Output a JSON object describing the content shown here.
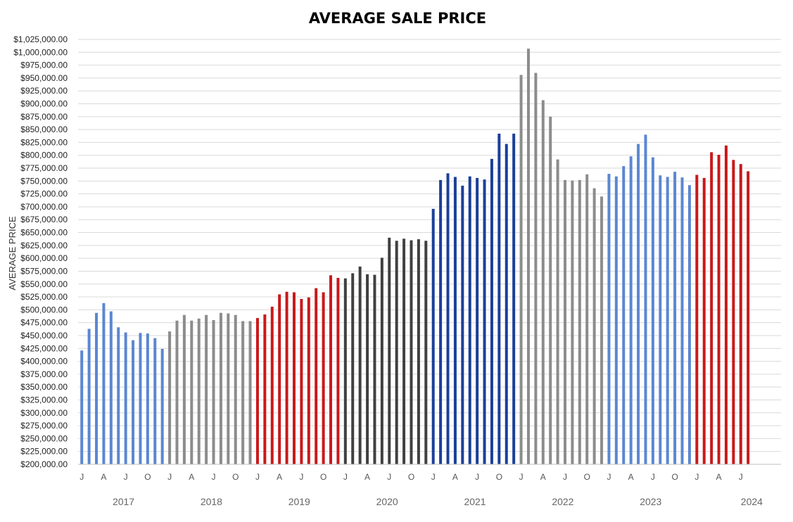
{
  "chart_data": {
    "type": "bar",
    "title": "AVERAGE SALE PRICE",
    "xlabel": "",
    "ylabel": "AVERAGE PRICE",
    "ylim": [
      200000,
      1025000
    ],
    "ytick_step": 25000,
    "ytick_format": "$#,##0.00",
    "grid": true,
    "legend": "none",
    "month_tick_labels": [
      "J",
      "A",
      "J",
      "O"
    ],
    "years": [
      {
        "year": "2017",
        "color": "#5b87d1",
        "values": [
          421000,
          463000,
          494000,
          513000,
          497000,
          466000,
          456000,
          441000,
          455000,
          454000,
          445000,
          424000
        ]
      },
      {
        "year": "2018",
        "color": "#8c8c8c",
        "values": [
          458000,
          479000,
          490000,
          479000,
          483000,
          490000,
          480000,
          494000,
          493000,
          490000,
          478000,
          478000
        ]
      },
      {
        "year": "2019",
        "color": "#c8191b",
        "values": [
          484000,
          491000,
          506000,
          530000,
          535000,
          534000,
          521000,
          524000,
          542000,
          534000,
          567000,
          562000
        ]
      },
      {
        "year": "2020",
        "color": "#404040",
        "values": [
          561000,
          571000,
          584000,
          569000,
          568000,
          601000,
          640000,
          634000,
          638000,
          635000,
          637000,
          634000
        ]
      },
      {
        "year": "2021",
        "color": "#1b3f99",
        "values": [
          696000,
          752000,
          765000,
          758000,
          741000,
          759000,
          756000,
          753000,
          793000,
          842000,
          822000,
          842000
        ]
      },
      {
        "year": "2022",
        "color": "#8c8c8c",
        "values": [
          956000,
          1007000,
          960000,
          907000,
          875000,
          792000,
          752000,
          751000,
          752000,
          763000,
          736000,
          720000
        ]
      },
      {
        "year": "2023",
        "color": "#5b87d1",
        "values": [
          764000,
          759000,
          779000,
          798000,
          822000,
          840000,
          796000,
          761000,
          758000,
          768000,
          757000,
          742000
        ]
      },
      {
        "year": "2024",
        "color": "#c8191b",
        "values": [
          762000,
          756000,
          806000,
          801000,
          819000,
          791000,
          783000,
          769000
        ]
      }
    ]
  }
}
